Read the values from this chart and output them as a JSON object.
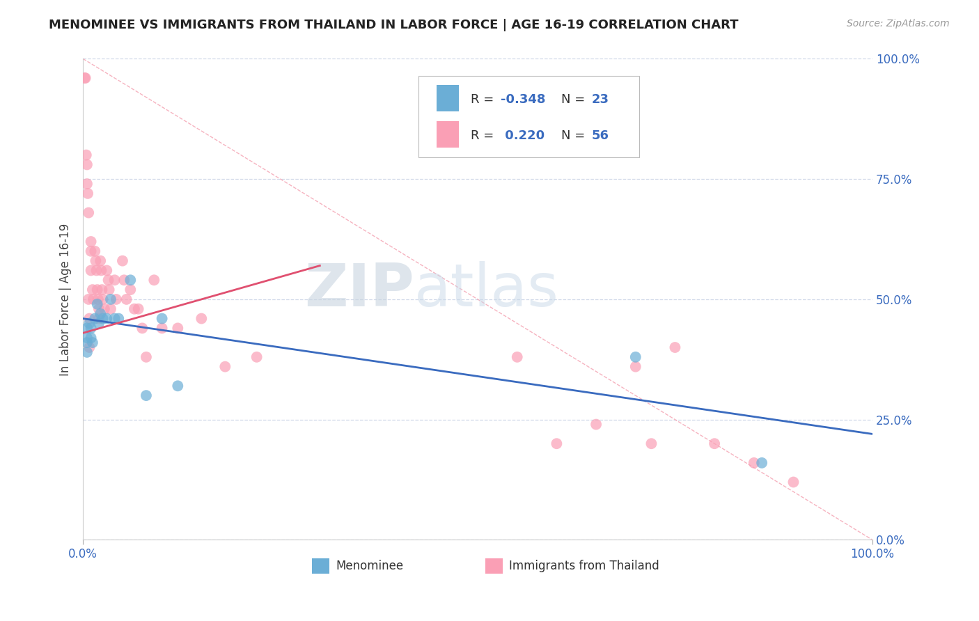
{
  "title": "MENOMINEE VS IMMIGRANTS FROM THAILAND IN LABOR FORCE | AGE 16-19 CORRELATION CHART",
  "source_text": "Source: ZipAtlas.com",
  "ylabel": "In Labor Force | Age 16-19",
  "xlim": [
    0.0,
    1.0
  ],
  "ylim": [
    0.0,
    1.0
  ],
  "xticks": [
    0.0,
    0.25,
    0.5,
    0.75,
    1.0
  ],
  "yticks": [
    0.0,
    0.25,
    0.5,
    0.75,
    1.0
  ],
  "xticklabels": [
    "0.0%",
    "",
    "",
    "",
    "100.0%"
  ],
  "yticklabels_right": [
    "0.0%",
    "25.0%",
    "50.0%",
    "75.0%",
    "100.0%"
  ],
  "menominee_color": "#6baed6",
  "thailand_color": "#fa9fb5",
  "menominee_R": "-0.348",
  "menominee_N": "23",
  "thailand_R": "0.220",
  "thailand_N": "56",
  "watermark_zip": "ZIP",
  "watermark_atlas": "atlas",
  "menominee_x": [
    0.005,
    0.005,
    0.005,
    0.005,
    0.008,
    0.01,
    0.01,
    0.012,
    0.015,
    0.018,
    0.02,
    0.022,
    0.025,
    0.03,
    0.035,
    0.04,
    0.045,
    0.06,
    0.08,
    0.1,
    0.12,
    0.7,
    0.86
  ],
  "menominee_y": [
    0.44,
    0.42,
    0.41,
    0.39,
    0.45,
    0.44,
    0.42,
    0.41,
    0.46,
    0.49,
    0.45,
    0.47,
    0.46,
    0.46,
    0.5,
    0.46,
    0.46,
    0.54,
    0.3,
    0.46,
    0.32,
    0.38,
    0.16
  ],
  "thailand_x": [
    0.002,
    0.003,
    0.004,
    0.005,
    0.005,
    0.006,
    0.007,
    0.007,
    0.008,
    0.008,
    0.01,
    0.01,
    0.01,
    0.012,
    0.013,
    0.015,
    0.016,
    0.017,
    0.018,
    0.019,
    0.02,
    0.02,
    0.022,
    0.023,
    0.024,
    0.025,
    0.027,
    0.03,
    0.032,
    0.033,
    0.035,
    0.04,
    0.042,
    0.05,
    0.052,
    0.055,
    0.06,
    0.065,
    0.07,
    0.075,
    0.08,
    0.09,
    0.1,
    0.12,
    0.15,
    0.18,
    0.22,
    0.55,
    0.6,
    0.65,
    0.7,
    0.72,
    0.75,
    0.8,
    0.85,
    0.9
  ],
  "thailand_y": [
    0.96,
    0.96,
    0.8,
    0.78,
    0.74,
    0.72,
    0.68,
    0.5,
    0.46,
    0.4,
    0.62,
    0.6,
    0.56,
    0.52,
    0.5,
    0.6,
    0.58,
    0.56,
    0.52,
    0.5,
    0.48,
    0.46,
    0.58,
    0.56,
    0.52,
    0.5,
    0.48,
    0.56,
    0.54,
    0.52,
    0.48,
    0.54,
    0.5,
    0.58,
    0.54,
    0.5,
    0.52,
    0.48,
    0.48,
    0.44,
    0.38,
    0.54,
    0.44,
    0.44,
    0.46,
    0.36,
    0.38,
    0.38,
    0.2,
    0.24,
    0.36,
    0.2,
    0.4,
    0.2,
    0.16,
    0.12
  ],
  "blue_line_x": [
    0.0,
    1.0
  ],
  "blue_line_y": [
    0.46,
    0.22
  ],
  "pink_line_x": [
    0.0,
    0.3
  ],
  "pink_line_y": [
    0.43,
    0.57
  ],
  "diag_line_x": [
    0.0,
    1.0
  ],
  "diag_line_y": [
    1.0,
    0.0
  ],
  "background_color": "#ffffff",
  "grid_color": "#d0d8e8"
}
